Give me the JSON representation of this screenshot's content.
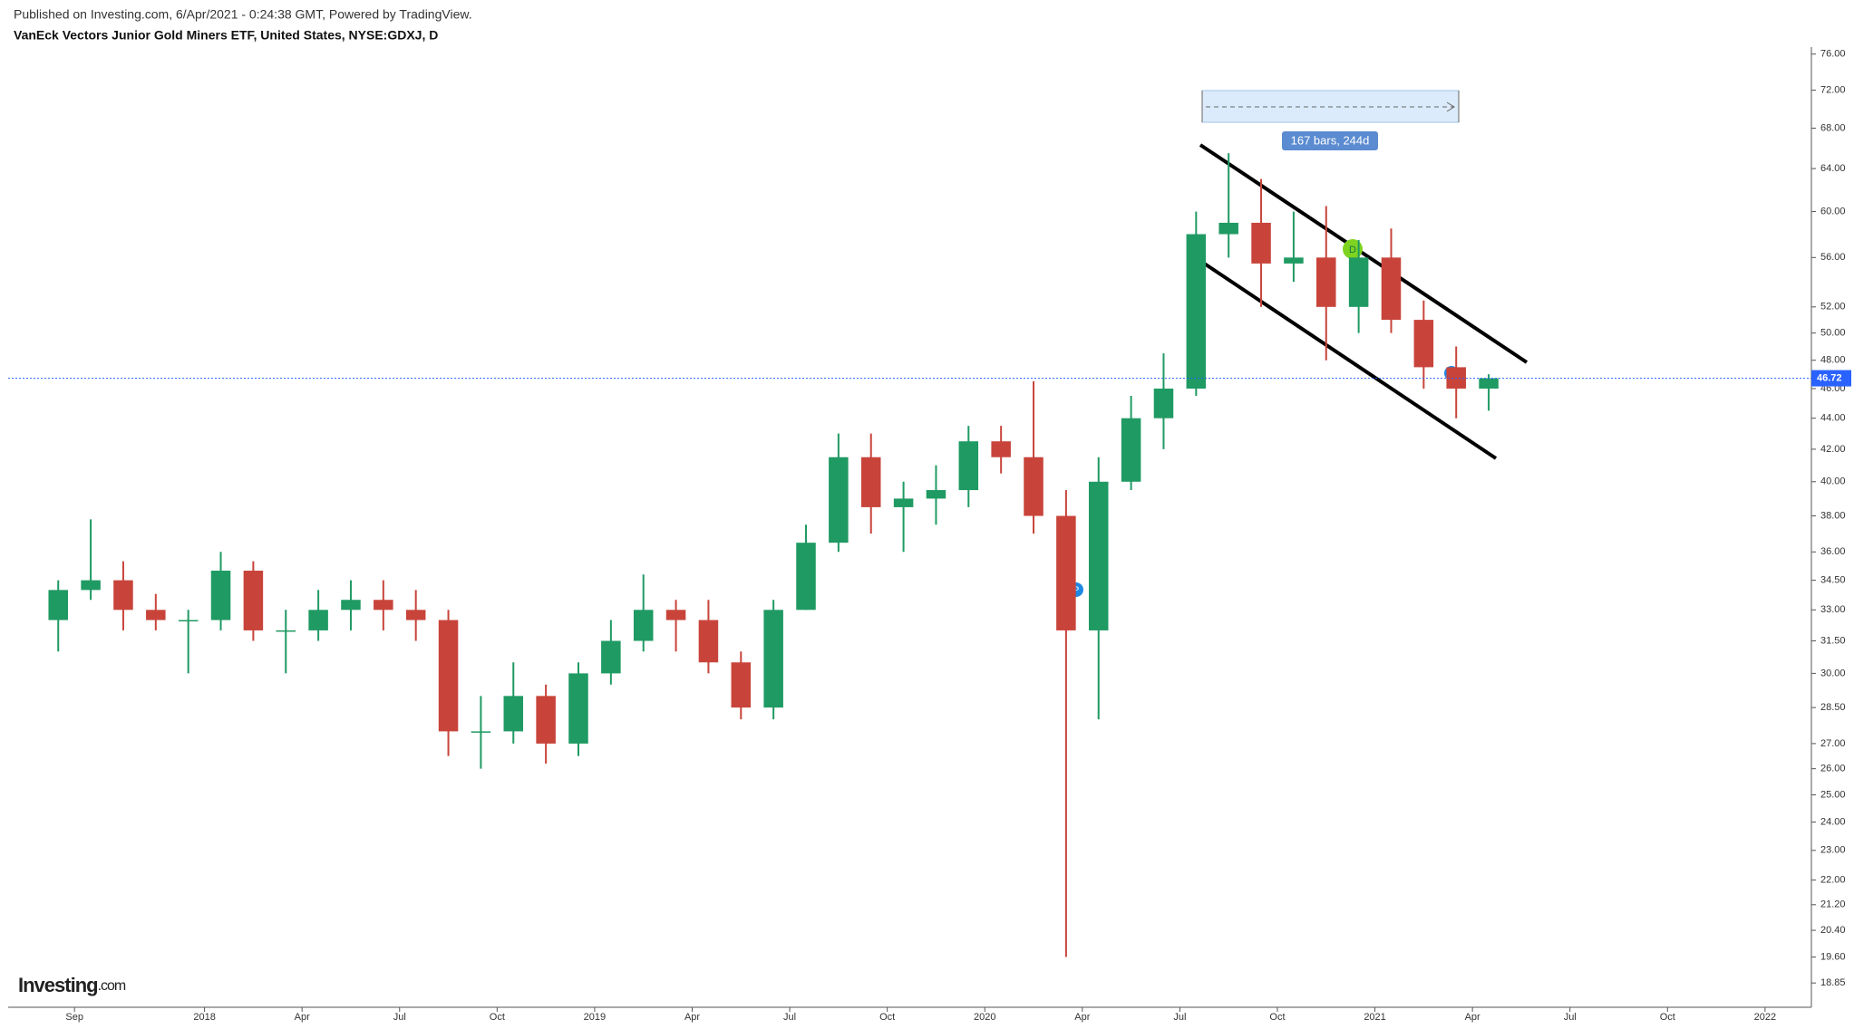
{
  "header": {
    "published": "Published on Investing.com, 6/Apr/2021 - 0:24:38 GMT, Powered by TradingView.",
    "title": "VanEck Vectors Junior Gold Miners ETF, United States, NYSE:GDXJ, D"
  },
  "logo": {
    "brand": "Investing",
    "suffix": ".com"
  },
  "chart_data": {
    "type": "candlestick",
    "log_scale": true,
    "up_color": "#1f9a63",
    "down_color": "#c8443a",
    "categories": [
      null,
      "Sep",
      null,
      null,
      null,
      "2018",
      null,
      null,
      "Apr",
      null,
      null,
      "Jul",
      null,
      null,
      "Oct",
      null,
      null,
      "2019",
      null,
      null,
      "Apr",
      null,
      null,
      "Jul",
      null,
      null,
      "Oct",
      null,
      null,
      "2020",
      null,
      null,
      "Apr",
      null,
      null,
      "Jul",
      null,
      null,
      "Oct",
      null,
      null,
      "2021",
      null,
      null,
      "Apr",
      null,
      null,
      "Jul",
      null,
      null,
      "Oct",
      null,
      null,
      "2022"
    ],
    "open": [
      32.5,
      34,
      34.5,
      33,
      32.5,
      32.5,
      35,
      32,
      32,
      33,
      33.5,
      33,
      32.5,
      27.5,
      27.5,
      29,
      27,
      30,
      31.5,
      33,
      32.5,
      30.5,
      28.5,
      33,
      36.5,
      41.5,
      38.5,
      39,
      39.5,
      42.5,
      41.5,
      38,
      32,
      40,
      44,
      46,
      58,
      59,
      55.5,
      56,
      52,
      56,
      51,
      47.5,
      46,
      null,
      null,
      null,
      null,
      null,
      null,
      null,
      null,
      null
    ],
    "high": [
      34.5,
      37.8,
      35.5,
      33.8,
      33,
      36,
      35.5,
      33,
      34,
      34.5,
      34.5,
      34,
      33,
      29,
      30.5,
      29.5,
      30.5,
      32.5,
      34.8,
      33.5,
      33.5,
      31,
      33.5,
      37.5,
      43,
      43,
      40,
      41,
      43.5,
      43.5,
      46.5,
      39.5,
      41.5,
      45.5,
      48.5,
      60,
      65.5,
      63,
      60,
      60.5,
      57.5,
      58.5,
      52.5,
      49,
      47,
      null,
      null,
      null,
      null,
      null,
      null,
      null,
      null,
      null
    ],
    "low": [
      31,
      33.5,
      32,
      32,
      30,
      32,
      31.5,
      30,
      31.5,
      32,
      32,
      31.5,
      26.5,
      26,
      27,
      26.2,
      26.5,
      29.5,
      31,
      31,
      30,
      28,
      28,
      33,
      36,
      37,
      36,
      37.5,
      38.5,
      40.5,
      37,
      19.6,
      28,
      39.5,
      42,
      45.5,
      56,
      52,
      54,
      48,
      50,
      50,
      46,
      44,
      44.5,
      null,
      null,
      null,
      null,
      null,
      null,
      null,
      null,
      null
    ],
    "close": [
      34,
      34.5,
      33,
      32.5,
      32.5,
      35,
      32,
      32,
      33,
      33.5,
      33,
      32.5,
      27.5,
      27.5,
      29,
      27,
      30,
      31.5,
      33,
      32.5,
      30.5,
      28.5,
      33,
      36.5,
      41.5,
      38.5,
      39,
      39.5,
      42.5,
      41.5,
      38,
      32,
      40,
      44,
      46,
      58,
      59,
      55.5,
      56,
      52,
      56,
      51,
      47.5,
      46,
      46.72,
      null,
      null,
      null,
      null,
      null,
      null,
      null,
      null,
      null
    ],
    "last_price": 46.72,
    "last_price_color": "#2962ff",
    "ylim": [
      18.2,
      76.8
    ],
    "yticks": [
      {
        "value": 76,
        "label": "76.00"
      },
      {
        "value": 72,
        "label": "72.00"
      },
      {
        "value": 68,
        "label": "68.00"
      },
      {
        "value": 64,
        "label": "64.00"
      },
      {
        "value": 60,
        "label": "60.00"
      },
      {
        "value": 56,
        "label": "56.00"
      },
      {
        "value": 52,
        "label": "52.00"
      },
      {
        "value": 50,
        "label": "50.00"
      },
      {
        "value": 48,
        "label": "48.00"
      },
      {
        "value": 46,
        "label": "46.00"
      },
      {
        "value": 44,
        "label": "44.00"
      },
      {
        "value": 42,
        "label": "42.00"
      },
      {
        "value": 40,
        "label": "40.00"
      },
      {
        "value": 38,
        "label": "38.00"
      },
      {
        "value": 36,
        "label": "36.00"
      },
      34.5,
      {
        "value": 33,
        "label": "33.00"
      },
      31.5,
      {
        "value": 30,
        "label": "30.00"
      },
      28.5,
      {
        "value": 27,
        "label": "27.00"
      },
      {
        "value": 26,
        "label": "26.00"
      },
      {
        "value": 25,
        "label": "25.00"
      },
      {
        "value": 24,
        "label": "24.00"
      },
      {
        "value": 23,
        "label": "23.00"
      },
      {
        "value": 22,
        "label": "22.00"
      },
      21.2,
      20.4,
      19.6,
      18.85
    ],
    "ytick_labels": [
      "76.00",
      "72.00",
      "68.00",
      "64.00",
      "60.00",
      "56.00",
      "52.00",
      "50.00",
      "48.00",
      "46.00",
      "44.00",
      "42.00",
      "40.00",
      "38.00",
      "36.00",
      "34.50",
      "33.00",
      "31.50",
      "30.00",
      "28.50",
      "27.00",
      "26.00",
      "25.00",
      "24.00",
      "23.00",
      "22.00",
      "21.20",
      "20.40",
      "19.60",
      "18.85"
    ],
    "annotations": {
      "range": "167 bars, 244d",
      "markers": [
        "D",
        "P",
        "P"
      ]
    }
  }
}
